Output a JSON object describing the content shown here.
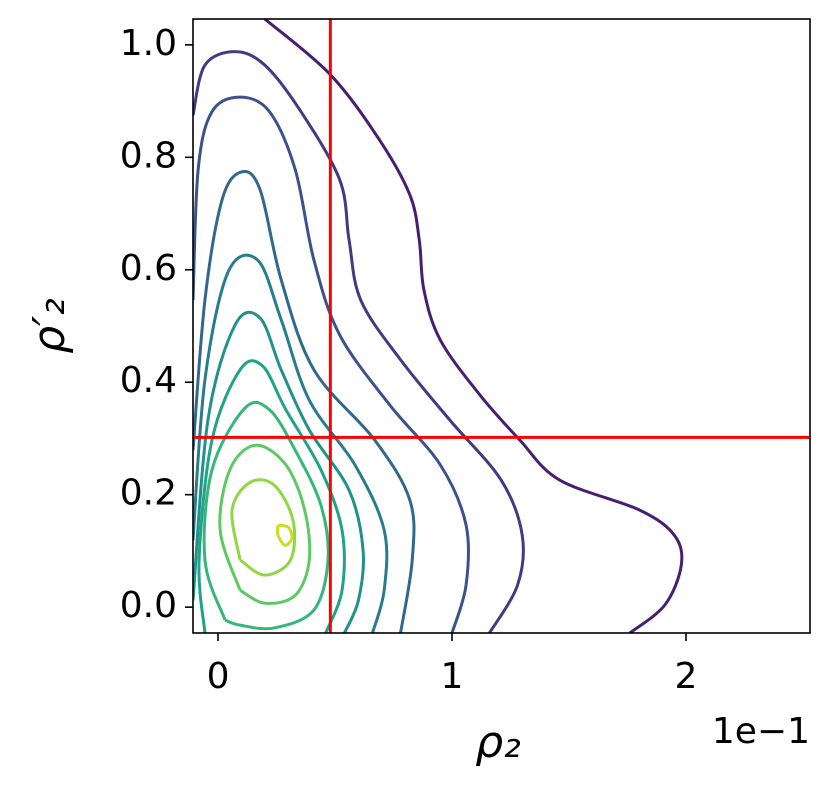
{
  "chart_data": {
    "type": "contour",
    "xlabel": "ρ₂",
    "ylabel": "ρ′₂",
    "x_offset_label": "1e−1",
    "xlim": [
      -0.107,
      2.53
    ],
    "ylim": [
      -0.046,
      1.046
    ],
    "xticks": [
      0,
      1,
      2
    ],
    "yticks": [
      {
        "value": 0,
        "label": "0.0"
      },
      0.2,
      0.4,
      0.6,
      0.8,
      {
        "value": 1,
        "label": "1.0"
      }
    ],
    "vline": 0.48,
    "hline": 0.302,
    "line_color": "#ff0000",
    "series": [
      {
        "color": "#481f70",
        "x": [
          0.2,
          0.48,
          0.69,
          0.82,
          0.86,
          0.88,
          0.95,
          1.12,
          1.29,
          1.46,
          1.8,
          1.95,
          1.98,
          1.91,
          1.76
        ],
        "y": [
          1.046,
          0.947,
          0.831,
          0.733,
          0.653,
          0.564,
          0.475,
          0.377,
          0.297,
          0.226,
          0.173,
          0.128,
          0.075,
          0.004,
          -0.046
        ]
      },
      {
        "color": "#443983",
        "x": [
          -0.107,
          -0.056,
          0.073,
          0.2,
          0.35,
          0.52,
          0.56,
          0.61,
          0.78,
          0.99,
          1.21,
          1.3,
          1.28,
          1.16
        ],
        "y": [
          0.875,
          0.964,
          0.988,
          0.964,
          0.884,
          0.76,
          0.653,
          0.546,
          0.44,
          0.333,
          0.226,
          0.128,
          0.039,
          -0.046
        ]
      },
      {
        "color": "#3b528b",
        "x": [
          -0.107,
          -0.085,
          -0.026,
          0.094,
          0.22,
          0.33,
          0.41,
          0.52,
          0.735,
          0.95,
          1.06,
          1.06,
          1.0
        ],
        "y": [
          0.546,
          0.778,
          0.881,
          0.907,
          0.881,
          0.778,
          0.617,
          0.484,
          0.359,
          0.253,
          0.146,
          0.039,
          -0.046
        ]
      },
      {
        "color": "#31688e",
        "x": [
          -0.107,
          -0.056,
          0.017,
          0.1,
          0.18,
          0.27,
          0.41,
          0.67,
          0.82,
          0.83,
          0.78
        ],
        "y": [
          0.279,
          0.546,
          0.724,
          0.774,
          0.742,
          0.582,
          0.422,
          0.297,
          0.19,
          0.084,
          -0.046
        ]
      },
      {
        "color": "#287c8e",
        "x": [
          -0.107,
          -0.056,
          0.043,
          0.17,
          0.27,
          0.39,
          0.585,
          0.71,
          0.71,
          0.66
        ],
        "y": [
          0.119,
          0.404,
          0.596,
          0.617,
          0.511,
          0.368,
          0.253,
          0.137,
          0.03,
          -0.046
        ]
      },
      {
        "color": "#21918c",
        "x": [
          -0.107,
          -0.043,
          0.073,
          0.18,
          0.27,
          0.39,
          0.56,
          0.62,
          0.6,
          0.54
        ],
        "y": [
          0.012,
          0.333,
          0.502,
          0.514,
          0.422,
          0.315,
          0.208,
          0.101,
          0.012,
          -0.046
        ]
      },
      {
        "color": "#20a386",
        "x": [
          -0.056,
          -0.081,
          -0.026,
          0.094,
          0.19,
          0.29,
          0.44,
          0.53,
          0.53,
          0.46
        ],
        "y": [
          -0.046,
          0.084,
          0.297,
          0.422,
          0.429,
          0.351,
          0.244,
          0.137,
          0.03,
          -0.046
        ]
      },
      {
        "color": "#35b779",
        "x": [
          0.03,
          -0.056,
          -0.026,
          0.115,
          0.22,
          0.33,
          0.44,
          0.47,
          0.41,
          0.24,
          0.094,
          0.03
        ],
        "y": [
          -0.023,
          0.084,
          0.244,
          0.354,
          0.351,
          0.279,
          0.181,
          0.084,
          -0.005,
          -0.037,
          -0.032,
          -0.023
        ]
      },
      {
        "color": "#5ec962",
        "x": [
          0.094,
          0.009,
          0.05,
          0.16,
          0.29,
          0.37,
          0.39,
          0.33,
          0.2,
          0.094
        ],
        "y": [
          0.03,
          0.137,
          0.244,
          0.288,
          0.253,
          0.173,
          0.084,
          0.021,
          0.007,
          0.03
        ]
      },
      {
        "color": "#90d743",
        "x": [
          0.094,
          0.06,
          0.137,
          0.24,
          0.32,
          0.31,
          0.2,
          0.094
        ],
        "y": [
          0.084,
          0.173,
          0.222,
          0.217,
          0.155,
          0.084,
          0.057,
          0.084
        ]
      },
      {
        "color": "#c8e020",
        "x": [
          0.256,
          0.3,
          0.316,
          0.286,
          0.256,
          0.256
        ],
        "y": [
          0.146,
          0.142,
          0.123,
          0.11,
          0.128,
          0.146
        ]
      }
    ]
  }
}
